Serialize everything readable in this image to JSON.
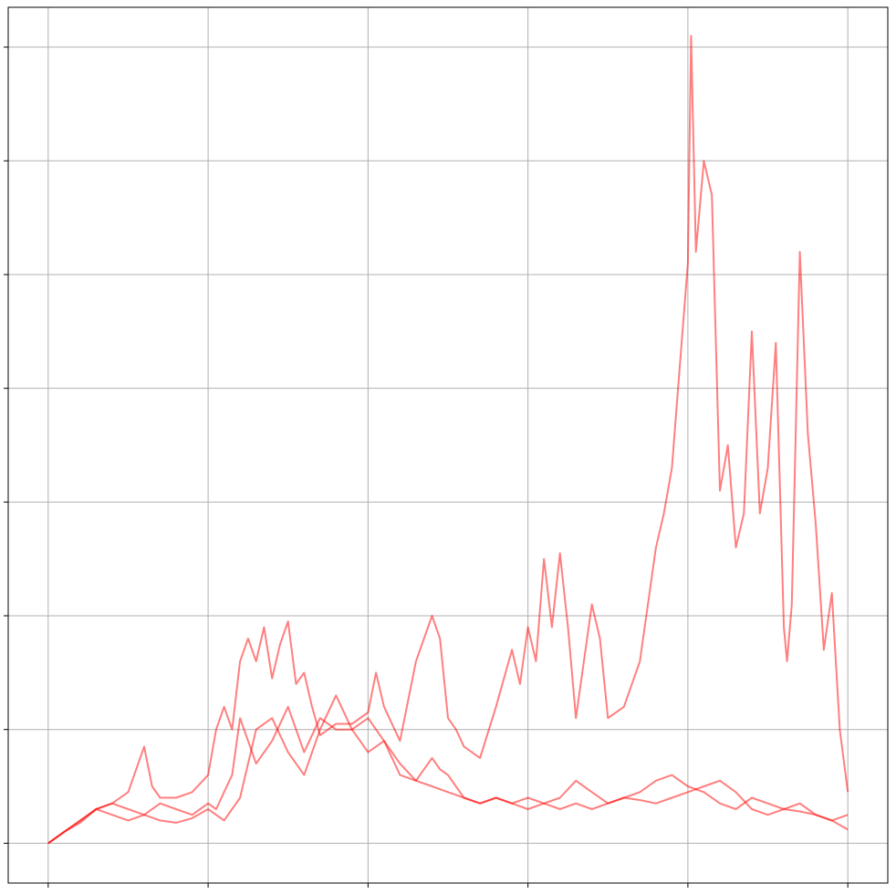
{
  "chart_data": {
    "type": "line",
    "title": "",
    "xlabel": "",
    "ylabel": "",
    "grid": true,
    "legend": "none",
    "xlim": [
      -0.25,
      5.25
    ],
    "ylim": [
      -0.35,
      7.35
    ],
    "x_ticks": [
      0,
      1,
      2,
      3,
      4,
      5
    ],
    "y_ticks": [
      0,
      1,
      2,
      3,
      4,
      5,
      6,
      7
    ],
    "line_color": "#ff0000",
    "line_opacity": 0.5,
    "grid_color": "#b0b0b0",
    "series": [
      {
        "x": [
          0,
          0.1,
          0.2,
          0.3,
          0.4,
          0.5,
          0.6,
          0.65,
          0.7,
          0.8,
          0.9,
          1.0,
          1.05,
          1.1,
          1.15,
          1.2,
          1.25,
          1.3,
          1.35,
          1.4,
          1.45,
          1.5,
          1.55,
          1.6,
          1.65,
          1.7,
          1.8,
          1.9,
          2.0,
          2.05,
          2.1,
          2.2,
          2.3,
          2.4,
          2.45,
          2.5,
          2.55,
          2.6,
          2.7,
          2.8,
          2.9,
          2.95,
          3.0,
          3.05,
          3.1,
          3.15,
          3.2,
          3.25,
          3.3,
          3.4,
          3.45,
          3.5,
          3.6,
          3.7,
          3.8,
          3.85,
          3.9,
          3.95,
          4.0,
          4.02,
          4.05,
          4.1,
          4.15,
          4.2,
          4.25,
          4.3,
          4.35,
          4.4,
          4.45,
          4.5,
          4.55,
          4.6,
          4.62,
          4.65,
          4.7,
          4.75,
          4.8,
          4.85,
          4.9,
          4.95,
          5.0
        ],
        "y": [
          0,
          0.1,
          0.18,
          0.3,
          0.35,
          0.45,
          0.85,
          0.5,
          0.4,
          0.4,
          0.45,
          0.6,
          1.0,
          1.2,
          1.0,
          1.6,
          1.8,
          1.6,
          1.9,
          1.45,
          1.75,
          1.95,
          1.4,
          1.5,
          1.2,
          0.95,
          1.05,
          1.05,
          1.15,
          1.5,
          1.2,
          0.9,
          1.6,
          2.0,
          1.8,
          1.1,
          1.0,
          0.85,
          0.75,
          1.2,
          1.7,
          1.4,
          1.9,
          1.6,
          2.5,
          1.9,
          2.55,
          1.9,
          1.1,
          2.1,
          1.8,
          1.1,
          1.2,
          1.6,
          2.6,
          2.9,
          3.3,
          4.2,
          5.1,
          7.1,
          5.2,
          6.0,
          5.7,
          3.1,
          3.5,
          2.6,
          2.9,
          4.5,
          2.9,
          3.3,
          4.4,
          1.9,
          1.6,
          2.1,
          5.2,
          3.6,
          2.8,
          1.7,
          2.2,
          1.0,
          0.45
        ]
      },
      {
        "x": [
          0,
          0.1,
          0.2,
          0.3,
          0.4,
          0.5,
          0.6,
          0.7,
          0.8,
          0.9,
          1.0,
          1.05,
          1.1,
          1.15,
          1.2,
          1.3,
          1.4,
          1.5,
          1.6,
          1.7,
          1.8,
          1.9,
          2.0,
          2.05,
          2.1,
          2.2,
          2.3,
          2.4,
          2.45,
          2.5,
          2.6,
          2.7,
          2.8,
          2.9,
          3.0,
          3.1,
          3.2,
          3.3,
          3.4,
          3.5,
          3.6,
          3.7,
          3.8,
          3.9,
          4.0,
          4.1,
          4.2,
          4.3,
          4.4,
          4.5,
          4.6,
          4.7,
          4.75,
          4.8,
          4.9,
          5.0
        ],
        "y": [
          0,
          0.1,
          0.2,
          0.3,
          0.35,
          0.3,
          0.25,
          0.35,
          0.3,
          0.25,
          0.35,
          0.3,
          0.45,
          0.6,
          1.1,
          0.7,
          0.9,
          1.2,
          0.8,
          1.1,
          1.0,
          1.0,
          1.1,
          1.0,
          0.9,
          0.7,
          0.55,
          0.75,
          0.65,
          0.6,
          0.4,
          0.35,
          0.4,
          0.35,
          0.3,
          0.35,
          0.4,
          0.55,
          0.45,
          0.35,
          0.4,
          0.45,
          0.55,
          0.6,
          0.5,
          0.45,
          0.35,
          0.3,
          0.4,
          0.35,
          0.3,
          0.35,
          0.3,
          0.25,
          0.2,
          0.25
        ]
      },
      {
        "x": [
          0,
          0.1,
          0.2,
          0.3,
          0.4,
          0.5,
          0.6,
          0.7,
          0.8,
          0.9,
          1.0,
          1.1,
          1.2,
          1.3,
          1.4,
          1.5,
          1.6,
          1.7,
          1.8,
          1.9,
          2.0,
          2.1,
          2.2,
          2.3,
          2.4,
          2.5,
          2.6,
          2.7,
          2.8,
          2.9,
          3.0,
          3.1,
          3.2,
          3.3,
          3.4,
          3.5,
          3.6,
          3.7,
          3.8,
          3.9,
          4.0,
          4.1,
          4.2,
          4.3,
          4.4,
          4.5,
          4.6,
          4.7,
          4.8,
          4.9,
          5.0
        ],
        "y": [
          0,
          0.1,
          0.2,
          0.3,
          0.25,
          0.2,
          0.25,
          0.2,
          0.18,
          0.22,
          0.3,
          0.2,
          0.4,
          1.0,
          1.1,
          0.8,
          0.6,
          1.0,
          1.3,
          1.0,
          0.8,
          0.9,
          0.6,
          0.55,
          0.5,
          0.45,
          0.4,
          0.35,
          0.4,
          0.35,
          0.4,
          0.35,
          0.3,
          0.35,
          0.3,
          0.35,
          0.4,
          0.38,
          0.35,
          0.4,
          0.45,
          0.5,
          0.55,
          0.45,
          0.3,
          0.25,
          0.3,
          0.28,
          0.25,
          0.2,
          0.12
        ]
      }
    ]
  }
}
